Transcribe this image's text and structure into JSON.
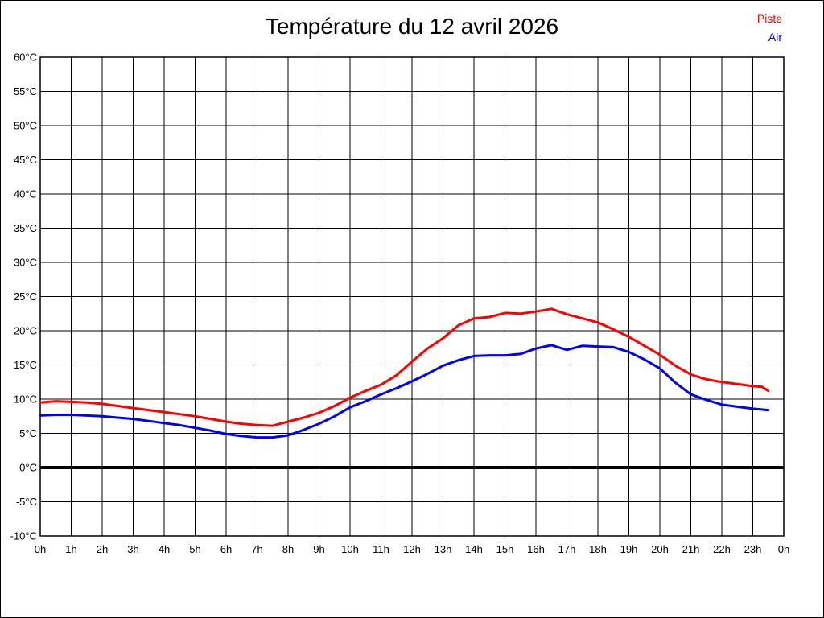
{
  "page": {
    "background": "#ffffff",
    "frame_border_color": "#000000",
    "grid_color": "#000000",
    "zero_line_color": "#000000"
  },
  "chart_data": {
    "type": "line",
    "title": "Température du 12 avril 2026",
    "xlabel": "",
    "ylabel": "",
    "xlim": [
      0,
      24
    ],
    "ylim": [
      -10,
      60
    ],
    "grid": true,
    "y_ticks": [
      60,
      55,
      50,
      45,
      40,
      35,
      30,
      25,
      20,
      15,
      10,
      5,
      0,
      -5,
      -10
    ],
    "y_tick_suffix": "°C",
    "x_tick_labels": [
      "0h",
      "1h",
      "2h",
      "3h",
      "4h",
      "5h",
      "6h",
      "7h",
      "8h",
      "9h",
      "10h",
      "11h",
      "12h",
      "13h",
      "14h",
      "15h",
      "16h",
      "17h",
      "18h",
      "19h",
      "20h",
      "21h",
      "22h",
      "23h",
      "0h"
    ],
    "zero_line_value": 0,
    "legend": {
      "position": "top-right",
      "entries": [
        {
          "label": "Piste",
          "color": "#ff0000"
        },
        {
          "label": "Air",
          "color": "#0000ff"
        }
      ]
    },
    "series": [
      {
        "name": "Piste",
        "color": "#ff0000",
        "points": [
          [
            0,
            9.5
          ],
          [
            0.5,
            9.7
          ],
          [
            1,
            9.6
          ],
          [
            1.5,
            9.5
          ],
          [
            2,
            9.3
          ],
          [
            2.5,
            9.0
          ],
          [
            3,
            8.7
          ],
          [
            3.5,
            8.4
          ],
          [
            4,
            8.1
          ],
          [
            4.5,
            7.8
          ],
          [
            5,
            7.5
          ],
          [
            5.5,
            7.1
          ],
          [
            6,
            6.7
          ],
          [
            6.5,
            6.4
          ],
          [
            7,
            6.2
          ],
          [
            7.5,
            6.1
          ],
          [
            8,
            6.7
          ],
          [
            8.5,
            7.3
          ],
          [
            9,
            8.0
          ],
          [
            9.5,
            9.0
          ],
          [
            10,
            10.2
          ],
          [
            10.5,
            11.2
          ],
          [
            11,
            12.1
          ],
          [
            11.5,
            13.5
          ],
          [
            12,
            15.5
          ],
          [
            12.5,
            17.4
          ],
          [
            13,
            18.9
          ],
          [
            13.5,
            20.8
          ],
          [
            14,
            21.8
          ],
          [
            14.5,
            22.0
          ],
          [
            15,
            22.6
          ],
          [
            15.5,
            22.5
          ],
          [
            16,
            22.8
          ],
          [
            16.5,
            23.2
          ],
          [
            17,
            22.4
          ],
          [
            17.5,
            21.8
          ],
          [
            18,
            21.2
          ],
          [
            18.5,
            20.2
          ],
          [
            19,
            19.1
          ],
          [
            19.5,
            17.8
          ],
          [
            20,
            16.5
          ],
          [
            20.5,
            14.9
          ],
          [
            21,
            13.6
          ],
          [
            21.5,
            12.9
          ],
          [
            22,
            12.5
          ],
          [
            22.5,
            12.2
          ],
          [
            23,
            11.9
          ],
          [
            23.3,
            11.8
          ],
          [
            23.5,
            11.2
          ]
        ]
      },
      {
        "name": "Air",
        "color": "#0000ff",
        "points": [
          [
            0,
            7.6
          ],
          [
            0.5,
            7.7
          ],
          [
            1,
            7.7
          ],
          [
            1.5,
            7.6
          ],
          [
            2,
            7.5
          ],
          [
            2.5,
            7.3
          ],
          [
            3,
            7.1
          ],
          [
            3.5,
            6.8
          ],
          [
            4,
            6.5
          ],
          [
            4.5,
            6.2
          ],
          [
            5,
            5.8
          ],
          [
            5.5,
            5.4
          ],
          [
            6,
            4.9
          ],
          [
            6.5,
            4.6
          ],
          [
            7,
            4.4
          ],
          [
            7.5,
            4.4
          ],
          [
            8,
            4.7
          ],
          [
            8.5,
            5.5
          ],
          [
            9,
            6.4
          ],
          [
            9.5,
            7.5
          ],
          [
            10,
            8.8
          ],
          [
            10.5,
            9.7
          ],
          [
            11,
            10.7
          ],
          [
            11.5,
            11.6
          ],
          [
            12,
            12.6
          ],
          [
            12.5,
            13.7
          ],
          [
            13,
            14.9
          ],
          [
            13.5,
            15.7
          ],
          [
            14,
            16.3
          ],
          [
            14.5,
            16.4
          ],
          [
            15,
            16.4
          ],
          [
            15.5,
            16.6
          ],
          [
            16,
            17.4
          ],
          [
            16.5,
            17.9
          ],
          [
            17,
            17.2
          ],
          [
            17.5,
            17.8
          ],
          [
            18,
            17.7
          ],
          [
            18.5,
            17.6
          ],
          [
            19,
            16.9
          ],
          [
            19.5,
            15.8
          ],
          [
            20,
            14.5
          ],
          [
            20.5,
            12.4
          ],
          [
            21,
            10.7
          ],
          [
            21.5,
            9.9
          ],
          [
            22,
            9.2
          ],
          [
            22.5,
            8.9
          ],
          [
            23,
            8.6
          ],
          [
            23.5,
            8.4
          ]
        ]
      }
    ]
  }
}
